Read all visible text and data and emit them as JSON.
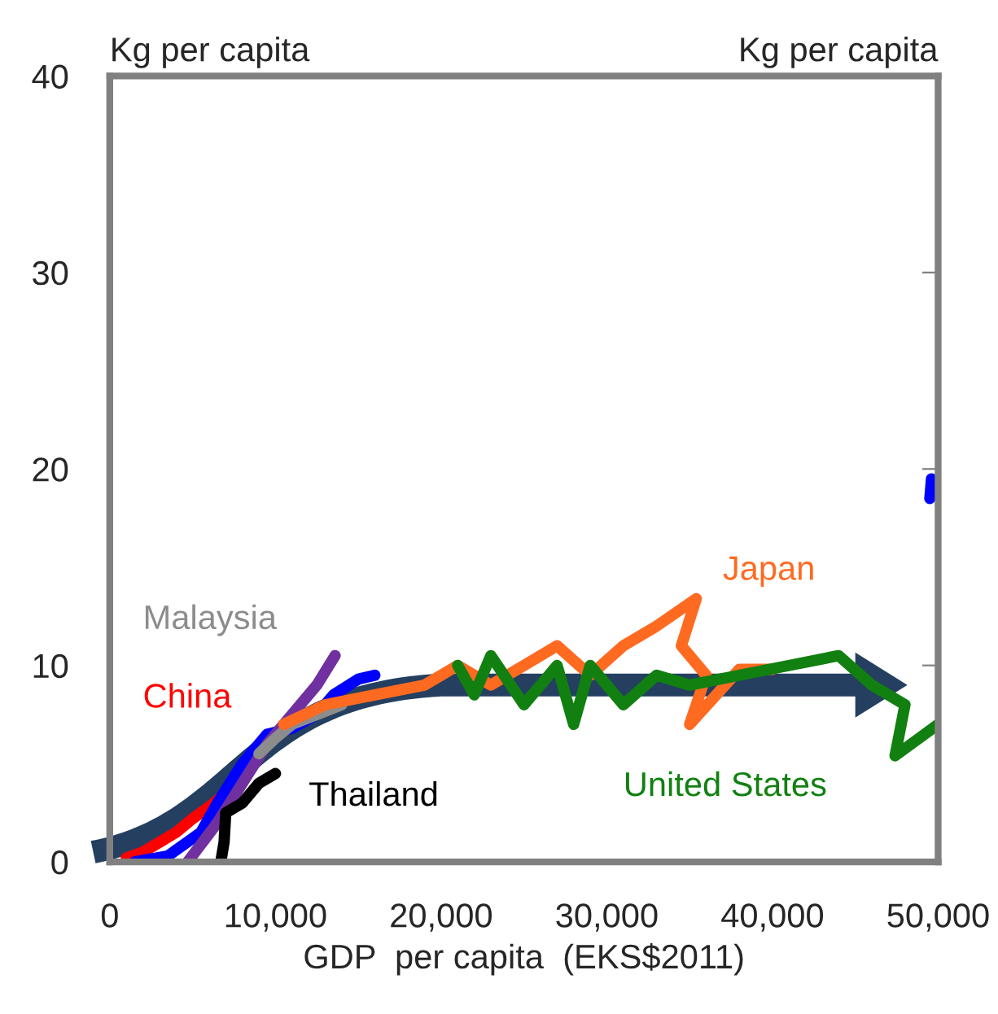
{
  "chart_data": {
    "type": "line",
    "xlabel": "GDP  per capita  (EKS$2011)",
    "ylabel": "Kg per capita",
    "y2label": "Kg per capita",
    "xlim": [
      0,
      50000
    ],
    "xticks": [
      0,
      {
        "value": 10000,
        "label": "10,000"
      },
      {
        "value": 20000,
        "label": "20,000"
      },
      {
        "value": 30000,
        "label": "30,000"
      },
      {
        "value": 40000,
        "label": "40,000"
      },
      {
        "value": 50000,
        "label": "50,000"
      }
    ],
    "ylim": [
      0,
      40
    ],
    "yticks": [
      0,
      10,
      20,
      30,
      40
    ],
    "grid": false,
    "legend": false,
    "marker": "none",
    "line_style": "solid",
    "series": [
      {
        "name": "China",
        "color": "#ff0000",
        "x": [
          1000,
          2000,
          3000,
          4000,
          5000,
          6000,
          7000
        ],
        "values": [
          0.2,
          0.5,
          1,
          1.5,
          2.2,
          2.8,
          3.5
        ]
      },
      {
        "color": "#0000ff",
        "x": [
          1500,
          3500,
          5500,
          6500,
          8000,
          9500,
          11000,
          12500,
          13500,
          15000,
          16000,
          null,
          49500,
          49600
        ],
        "values": [
          0,
          0.3,
          1.5,
          3,
          5,
          6.5,
          6.8,
          7.5,
          8.5,
          9.3,
          9.5,
          null,
          18.5,
          19.5
        ]
      },
      {
        "color": "#7030a0",
        "x": [
          4700,
          6500,
          8000,
          9500,
          11000,
          12500,
          13600
        ],
        "values": [
          0,
          2,
          4,
          6,
          7.5,
          9,
          10.5
        ]
      },
      {
        "name": "Malaysia",
        "color": "#8c8c8c",
        "x": [
          9000,
          10000,
          11000,
          12500,
          14000
        ],
        "values": [
          5.5,
          6.3,
          7,
          7.5,
          8
        ]
      },
      {
        "name": "Thailand",
        "color": "#000000",
        "x": [
          6700,
          6900,
          7000,
          8000,
          9000,
          10000
        ],
        "values": [
          0,
          1,
          2.5,
          3,
          4,
          4.5
        ]
      },
      {
        "name": "Japan",
        "color": "#ff6a21",
        "x": [
          10500,
          13000,
          16000,
          19000,
          21000,
          23000,
          25000,
          27000,
          29000,
          31000,
          33000,
          35400,
          34500,
          36000,
          35000,
          38000,
          40000
        ],
        "values": [
          7,
          8,
          8.5,
          9,
          10,
          9,
          10,
          11,
          9.5,
          11,
          12,
          13.4,
          11,
          9.5,
          7,
          9.8,
          9.8
        ]
      },
      {
        "name": "United States",
        "color": "#118011",
        "x": [
          21000,
          22000,
          23000,
          25000,
          27000,
          28000,
          29000,
          31000,
          33000,
          35000,
          38000,
          41000,
          44000,
          46000,
          48000,
          47400,
          50000
        ],
        "values": [
          10,
          8.5,
          10.5,
          8,
          10,
          7,
          10,
          8,
          9.5,
          9,
          9.5,
          10,
          10.5,
          9,
          8,
          5.4,
          7
        ]
      }
    ]
  }
}
